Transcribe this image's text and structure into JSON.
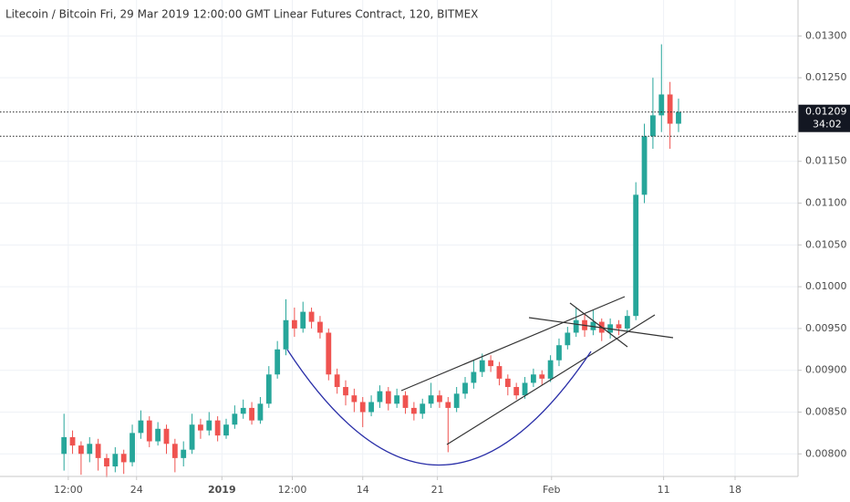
{
  "chart_data": {
    "type": "candlestick",
    "title": "Litecoin / Bitcoin Fri, 29 Mar 2019 12:00:00 GMT Linear Futures Contract, 120, BITMEX",
    "up_color": "#26a69a",
    "down_color": "#ef5350",
    "grid": true,
    "xlim": [
      0,
      74.8
    ],
    "xticks": [
      {
        "value": 6.4,
        "label": "12:00"
      },
      {
        "value": 12.8,
        "label": "24"
      },
      {
        "value": 20.8,
        "label": "2019"
      },
      {
        "value": 27.4,
        "label": "12:00"
      },
      {
        "value": 34.0,
        "label": "14"
      },
      {
        "value": 41.0,
        "label": "21"
      },
      {
        "value": 51.7,
        "label": "Feb"
      },
      {
        "value": 62.2,
        "label": "11"
      },
      {
        "value": 68.9,
        "label": "18"
      }
    ],
    "ylim": [
      0.00773,
      0.01343
    ],
    "yticks": [
      {
        "value": 0.008,
        "label": "0.00800"
      },
      {
        "value": 0.0085,
        "label": "0.00850"
      },
      {
        "value": 0.009,
        "label": "0.00900"
      },
      {
        "value": 0.0095,
        "label": "0.00950"
      },
      {
        "value": 0.01,
        "label": "0.01000"
      },
      {
        "value": 0.0105,
        "label": "0.01050"
      },
      {
        "value": 0.011,
        "label": "0.01100"
      },
      {
        "value": 0.0115,
        "label": "0.01150"
      },
      {
        "value": 0.0125,
        "label": "0.01250"
      },
      {
        "value": 0.013,
        "label": "0.01300"
      }
    ],
    "levels": [
      {
        "value": 0.01209,
        "label": "0.01209"
      },
      0.0118
    ],
    "countdown": "34:02",
    "x": [
      6.0,
      6.8,
      7.6,
      8.4,
      9.2,
      10.0,
      10.8,
      11.6,
      12.4,
      13.2,
      14.0,
      14.8,
      15.6,
      16.4,
      17.2,
      18.0,
      18.8,
      19.6,
      20.4,
      21.2,
      22.0,
      22.8,
      23.6,
      24.4,
      25.2,
      26.0,
      26.8,
      27.6,
      28.4,
      29.2,
      30.0,
      30.8,
      31.6,
      32.4,
      33.2,
      34.0,
      34.8,
      35.6,
      36.4,
      37.2,
      38.0,
      38.8,
      39.6,
      40.4,
      41.2,
      42.0,
      42.8,
      43.6,
      44.4,
      45.2,
      46.0,
      46.8,
      47.6,
      48.4,
      49.2,
      50.0,
      50.8,
      51.6,
      52.4,
      53.2,
      54.0,
      54.8,
      55.6,
      56.4,
      57.2,
      58.0,
      58.8,
      59.6,
      60.4,
      61.2,
      62.0,
      62.8,
      63.6
    ],
    "open": [
      0.008,
      0.0082,
      0.0081,
      0.008,
      0.00812,
      0.00795,
      0.00785,
      0.008,
      0.0079,
      0.00825,
      0.0084,
      0.00815,
      0.0083,
      0.00812,
      0.00795,
      0.00805,
      0.00835,
      0.00828,
      0.0084,
      0.00822,
      0.00835,
      0.00848,
      0.00855,
      0.0084,
      0.0086,
      0.00895,
      0.00925,
      0.0096,
      0.0095,
      0.0097,
      0.00958,
      0.00945,
      0.00895,
      0.0088,
      0.0087,
      0.00862,
      0.0085,
      0.00862,
      0.00875,
      0.0086,
      0.0087,
      0.00855,
      0.00848,
      0.0086,
      0.0087,
      0.00862,
      0.00855,
      0.00872,
      0.00885,
      0.00898,
      0.00912,
      0.00905,
      0.0089,
      0.0088,
      0.0087,
      0.00885,
      0.00895,
      0.0089,
      0.00912,
      0.0093,
      0.00945,
      0.0096,
      0.00948,
      0.00958,
      0.00945,
      0.00955,
      0.0095,
      0.00965,
      0.0111,
      0.0118,
      0.01205,
      0.0123,
      0.01195
    ],
    "high": [
      0.00848,
      0.00828,
      0.00815,
      0.0082,
      0.00818,
      0.008,
      0.00808,
      0.00805,
      0.00835,
      0.00852,
      0.00845,
      0.00838,
      0.00835,
      0.00818,
      0.00815,
      0.00848,
      0.00842,
      0.0085,
      0.00845,
      0.00842,
      0.00858,
      0.00865,
      0.00862,
      0.00868,
      0.00905,
      0.00935,
      0.00985,
      0.00975,
      0.00982,
      0.00975,
      0.00965,
      0.0095,
      0.00902,
      0.00888,
      0.00878,
      0.00868,
      0.0087,
      0.00882,
      0.0088,
      0.00878,
      0.00875,
      0.00862,
      0.00866,
      0.00885,
      0.00876,
      0.00868,
      0.0088,
      0.00892,
      0.00912,
      0.0092,
      0.00918,
      0.0091,
      0.00895,
      0.00885,
      0.00892,
      0.00902,
      0.009,
      0.00918,
      0.00938,
      0.00952,
      0.00975,
      0.00968,
      0.00972,
      0.00962,
      0.00962,
      0.0096,
      0.00972,
      0.01125,
      0.01195,
      0.0125,
      0.0129,
      0.01245,
      0.01225
    ],
    "low": [
      0.0078,
      0.008,
      0.00775,
      0.0079,
      0.0078,
      0.00772,
      0.00778,
      0.00776,
      0.00785,
      0.00818,
      0.00808,
      0.0081,
      0.008,
      0.00778,
      0.00785,
      0.008,
      0.00818,
      0.00822,
      0.00815,
      0.00818,
      0.0083,
      0.00842,
      0.00835,
      0.00836,
      0.00855,
      0.0089,
      0.00918,
      0.0094,
      0.00945,
      0.0095,
      0.00938,
      0.00888,
      0.00872,
      0.00858,
      0.0085,
      0.00832,
      0.00845,
      0.00855,
      0.00852,
      0.00855,
      0.00848,
      0.0084,
      0.00842,
      0.00855,
      0.00855,
      0.00802,
      0.0085,
      0.00866,
      0.00878,
      0.00892,
      0.00898,
      0.00882,
      0.0087,
      0.00865,
      0.00866,
      0.0088,
      0.00882,
      0.00886,
      0.00905,
      0.00925,
      0.0094,
      0.0094,
      0.00942,
      0.00935,
      0.00938,
      0.00942,
      0.00945,
      0.0096,
      0.011,
      0.01165,
      0.01185,
      0.01165,
      0.01185
    ],
    "close": [
      0.0082,
      0.0081,
      0.008,
      0.00812,
      0.00795,
      0.00785,
      0.008,
      0.0079,
      0.00825,
      0.0084,
      0.00815,
      0.0083,
      0.00812,
      0.00795,
      0.00805,
      0.00835,
      0.00828,
      0.0084,
      0.00822,
      0.00835,
      0.00848,
      0.00855,
      0.0084,
      0.0086,
      0.00895,
      0.00925,
      0.0096,
      0.0095,
      0.0097,
      0.00958,
      0.00945,
      0.00895,
      0.0088,
      0.0087,
      0.00862,
      0.0085,
      0.00862,
      0.00875,
      0.0086,
      0.0087,
      0.00855,
      0.00848,
      0.0086,
      0.0087,
      0.00862,
      0.00855,
      0.00872,
      0.00885,
      0.00898,
      0.00912,
      0.00905,
      0.0089,
      0.0088,
      0.0087,
      0.00885,
      0.00895,
      0.0089,
      0.00912,
      0.0093,
      0.00945,
      0.0096,
      0.00948,
      0.00958,
      0.00945,
      0.00955,
      0.0095,
      0.00965,
      0.0111,
      0.0118,
      0.01205,
      0.0123,
      0.01195,
      0.01209
    ]
  }
}
